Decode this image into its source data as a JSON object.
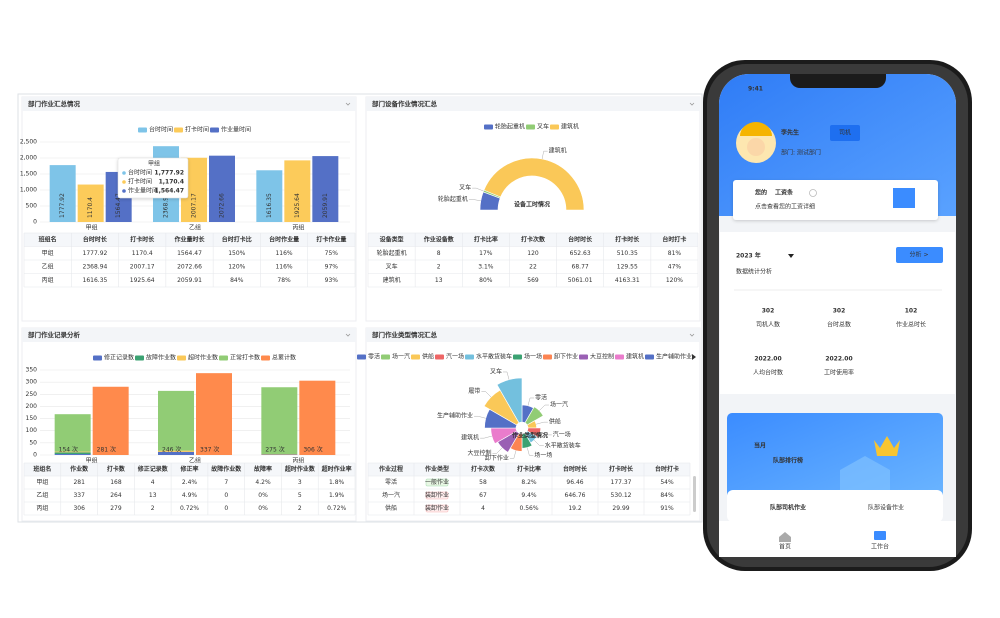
{
  "dashboard": {
    "panels": [
      {
        "title": "部门作业汇总情况",
        "chart": {
          "type": "bar",
          "categories": [
            "甲组",
            "乙组",
            "丙组"
          ],
          "series": [
            {
              "name": "台时时间",
              "color": "#7ec4e8",
              "values": [
                1777.92,
                2368.94,
                1616.35
              ]
            },
            {
              "name": "打卡时间",
              "color": "#fccb5a",
              "values": [
                1170.4,
                2007.17,
                1925.64
              ]
            },
            {
              "name": "作业量时间",
              "color": "#5470c6",
              "values": [
                1564.47,
                2072.66,
                2059.91
              ]
            }
          ],
          "ylim": [
            0,
            2500
          ],
          "yticks": [
            0,
            500,
            {
              "value": 1000,
              "label": "1,000"
            },
            {
              "value": 1500,
              "label": "1,500"
            },
            {
              "value": 2000,
              "label": "2,000"
            },
            {
              "value": 2500,
              "label": "2,500"
            }
          ],
          "grid": true,
          "tooltip_labels": [
            "1,777.92",
            "1,170.4",
            "1,564.47"
          ]
        },
        "table": {
          "header": [
            "班组名",
            "台时时长",
            "打卡时长",
            "作业量时长",
            "台时打卡比",
            "台时作业量",
            "打卡作业量"
          ],
          "rows": [
            [
              "甲组",
              "1777.92",
              "1170.4",
              "1564.47",
              "150%",
              "116%",
              "75%"
            ],
            [
              "乙组",
              "2368.94",
              "2007.17",
              "2072.66",
              "120%",
              "116%",
              "97%"
            ],
            [
              "丙组",
              "1616.35",
              "1925.64",
              "2059.91",
              "84%",
              "78%",
              "93%"
            ]
          ]
        }
      },
      {
        "title": "部门设备作业情况汇总",
        "chart": {
          "type": "pie",
          "center_label": "设备工时情况",
          "categories": [
            "轮胎起重机",
            "叉车",
            "建筑机"
          ],
          "values": [
            652.63,
            68.77,
            5061.01
          ],
          "colors": [
            "#5470c6",
            "#91cc75",
            "#fac858"
          ]
        },
        "table": {
          "header": [
            "设备类型",
            "作业设备数",
            "打卡比率",
            "打卡次数",
            "台时时长",
            "打卡时长",
            "台时打卡"
          ],
          "rows": [
            [
              "轮胎起重机",
              "8",
              "17%",
              "120",
              "652.63",
              "510.35",
              "81%"
            ],
            [
              "叉车",
              "2",
              "3.1%",
              "22",
              "68.77",
              "129.55",
              "47%"
            ],
            [
              "建筑机",
              "13",
              "80%",
              "569",
              "5061.01",
              "4163.31",
              "120%"
            ]
          ]
        }
      },
      {
        "title": "部门作业记录分析",
        "chart": {
          "type": "bar",
          "categories": [
            "甲组",
            "乙组",
            "丙组"
          ],
          "series": [
            {
              "name": "修正记录数",
              "color": "#5470c6",
              "values": [
                4,
                13,
                2
              ]
            },
            {
              "name": "故障作业数",
              "color": "#3ba272",
              "values": [
                7,
                0,
                0
              ]
            },
            {
              "name": "超时作业数",
              "color": "#fac858",
              "values": [
                3,
                5,
                2
              ]
            },
            {
              "name": "正常打卡数",
              "color": "#91cc75",
              "values": [
                154,
                246,
                275
              ],
              "value_labels": [
                "154 次",
                "246 次",
                "275 次"
              ]
            },
            {
              "name": "总累计数",
              "color": "#ff8a4c",
              "values": [
                281,
                337,
                306
              ],
              "value_labels": [
                "281 次",
                "337 次",
                "306 次"
              ]
            }
          ],
          "ylim": [
            0,
            350
          ],
          "yticks": [
            0,
            50,
            100,
            150,
            200,
            250,
            300,
            350
          ],
          "grid": true
        },
        "table": {
          "header": [
            "班组名",
            "作业数",
            "打卡数",
            "修正记录数",
            "修正率",
            "故障作业数",
            "故障率",
            "超时作业数",
            "超时作业率"
          ],
          "rows": [
            [
              "甲组",
              "281",
              "168",
              "4",
              "2.4%",
              "7",
              "4.2%",
              "3",
              "1.8%"
            ],
            [
              "乙组",
              "337",
              "264",
              "13",
              "4.9%",
              "0",
              "0%",
              "5",
              "1.9%"
            ],
            [
              "丙组",
              "306",
              "279",
              "2",
              "0.72%",
              "0",
              "0%",
              "2",
              "0.72%"
            ]
          ]
        }
      },
      {
        "title": "部门作业类型情况汇总",
        "chart": {
          "type": "pie",
          "rose": true,
          "center_label": "作业类型情况",
          "categories": [
            "零活",
            "场一汽",
            "供船",
            "汽一场",
            "水平散货装车",
            "场一场",
            "卸下作业",
            "大豆控制",
            "建筑机",
            "生产辅助作业",
            "履带",
            "叉车"
          ],
          "values": [
            58,
            67,
            4,
            30,
            20,
            40,
            60,
            90,
            110,
            150,
            190,
            230
          ],
          "colors": [
            "#5470c6",
            "#91cc75",
            "#fac858",
            "#ee6666",
            "#73c0de",
            "#3ba272",
            "#fc8452",
            "#9a60b4",
            "#ea7ccc",
            "#5470c6",
            "#fac858",
            "#73c0de"
          ]
        },
        "table": {
          "header": [
            "作业过程",
            "作业类型",
            "打卡次数",
            "打卡比率",
            "台时时长",
            "打卡时长",
            "台时打卡"
          ],
          "rows": [
            [
              "零活",
              "一般作业",
              "58",
              "8.2%",
              "96.46",
              "177.37",
              "54%"
            ],
            [
              "场一汽",
              "装卸作业",
              "67",
              "9.4%",
              "646.76",
              "530.12",
              "84%"
            ],
            [
              "供船",
              "装卸作业",
              "4",
              "0.56%",
              "19.2",
              "29.99",
              "91%"
            ]
          ]
        }
      }
    ]
  },
  "phone": {
    "time": "9:41",
    "user": {
      "name": "李先生",
      "role": "司机",
      "dept": "部门: 测试部门"
    },
    "salary": {
      "prefix": "您的",
      "title": "工资条",
      "subtitle": "点击查看您的工资详细"
    },
    "year": "2023 年",
    "stats_title": "数据统计分析",
    "analyze": "分析 >",
    "stats": [
      {
        "value": 302,
        "label": "司机人数"
      },
      {
        "value": 302,
        "label": "台时总数"
      },
      {
        "value": 102,
        "label": "作业总时长"
      },
      {
        "value": "2022.00",
        "label": "人均台时数"
      },
      {
        "value": "2022.00",
        "label": "工时使用率"
      }
    ],
    "banner": {
      "line1": "当月",
      "line2": "队部排行榜"
    },
    "tabs": [
      "队部司机作业",
      "队部设备作业"
    ],
    "nav": [
      "首页",
      "工作台"
    ]
  }
}
